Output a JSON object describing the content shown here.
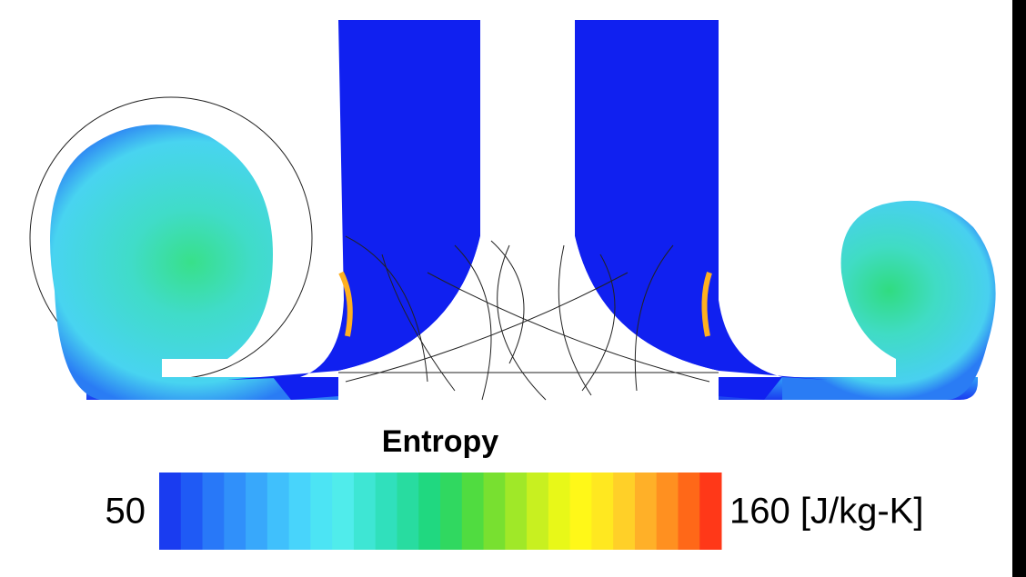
{
  "colorbar": {
    "title": "Entropy",
    "min_label": "50",
    "max_label": "160 [J/kg-K]",
    "colors": [
      "#1a3cf0",
      "#1f5af5",
      "#2878f8",
      "#3090fa",
      "#38a8fb",
      "#40c0fc",
      "#48d4fb",
      "#4ce4f4",
      "#50eceb",
      "#3ee6d4",
      "#30e0bc",
      "#28dca0",
      "#20d880",
      "#30d860",
      "#50dc40",
      "#78e030",
      "#a0e828",
      "#c8f020",
      "#e8f818",
      "#fff818",
      "#ffe820",
      "#ffd028",
      "#ffb028",
      "#ff9020",
      "#ff6818",
      "#ff3818"
    ]
  }
}
